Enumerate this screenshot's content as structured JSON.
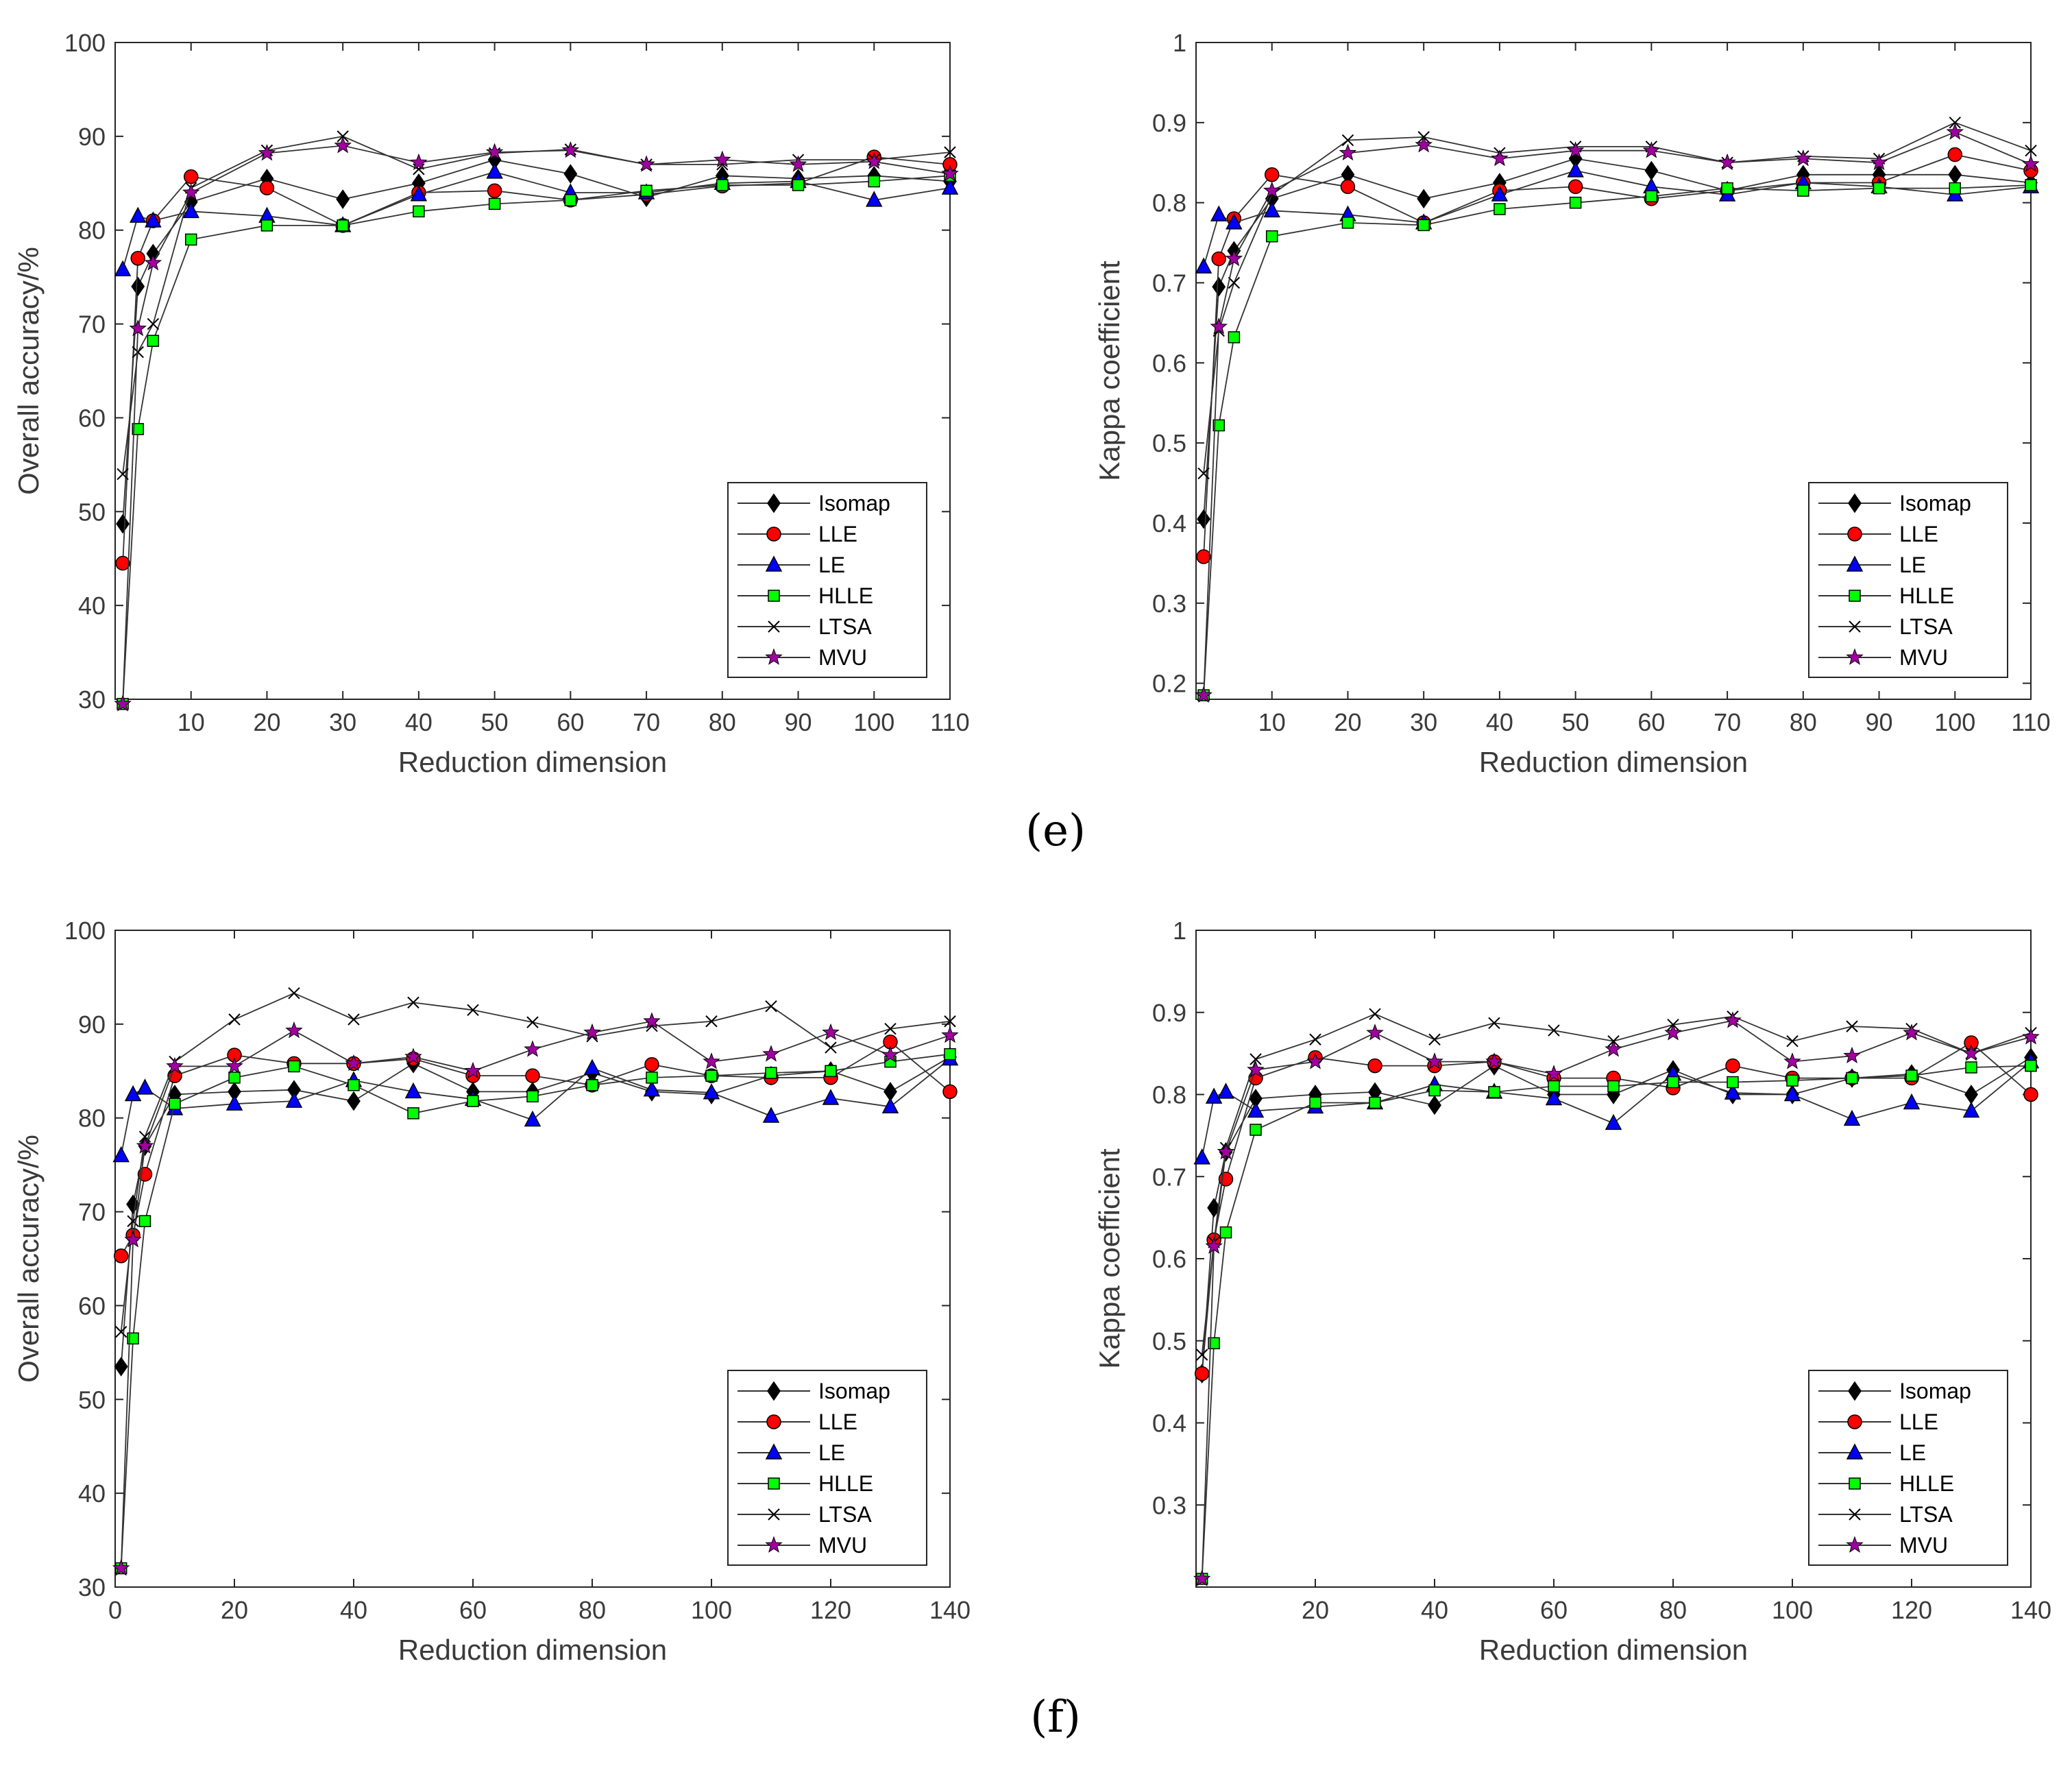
{
  "panels": [
    {
      "label": "(e)"
    },
    {
      "label": "(f)"
    }
  ],
  "colors": {
    "isomap": "#000000",
    "lle": "#ff0000",
    "le": "#0000ff",
    "hlle": "#00ff00",
    "ltsa": "#000000",
    "mvu": "#a000a0",
    "line": "#333333"
  },
  "chart_data": [
    {
      "id": "e-oa",
      "type": "line",
      "xlabel": "Reduction dimension",
      "ylabel": "Overall accuracy/%",
      "xlim": [
        0,
        110
      ],
      "ylim": [
        30,
        100
      ],
      "xticks": [
        10,
        20,
        30,
        40,
        50,
        60,
        70,
        80,
        90,
        100,
        110
      ],
      "yticks": [
        30,
        40,
        50,
        60,
        70,
        80,
        90,
        100
      ],
      "x": [
        1,
        3,
        5,
        10,
        20,
        30,
        40,
        50,
        60,
        70,
        80,
        90,
        100,
        110
      ],
      "legend": "bottom-right",
      "series": [
        {
          "name": "Isomap",
          "values": [
            48.7,
            74,
            77.5,
            83,
            85.5,
            83.3,
            85,
            87.5,
            86,
            83.5,
            85.8,
            85.5,
            85.8,
            85.2
          ]
        },
        {
          "name": "LLE",
          "values": [
            44.5,
            77,
            81,
            85.7,
            84.5,
            80.5,
            84,
            84.2,
            83.2,
            83.8,
            84.7,
            85,
            87.8,
            87
          ]
        },
        {
          "name": "LE",
          "values": [
            75.8,
            81.5,
            81,
            82,
            81.5,
            80.5,
            83.8,
            86.2,
            84,
            84,
            85,
            85.2,
            83.2,
            84.5
          ]
        },
        {
          "name": "HLLE",
          "values": [
            29.5,
            58.8,
            68.2,
            79,
            80.5,
            80.5,
            82,
            82.8,
            83.2,
            84.2,
            84.8,
            84.8,
            85.2,
            85.8
          ]
        },
        {
          "name": "LTSA",
          "values": [
            54,
            67,
            70,
            84.5,
            88.5,
            90,
            86.5,
            88.2,
            88.6,
            87,
            87,
            87.5,
            87.5,
            88.3
          ]
        },
        {
          "name": "MVU",
          "values": [
            29.5,
            69.5,
            76.5,
            84,
            88.2,
            89,
            87.2,
            88.3,
            88.5,
            87,
            87.5,
            87,
            87.3,
            86
          ]
        }
      ]
    },
    {
      "id": "e-kappa",
      "type": "line",
      "xlabel": "Reduction dimension",
      "ylabel": "Kappa coefficient",
      "xlim": [
        0,
        110
      ],
      "ylim": [
        0.18,
        1
      ],
      "xticks": [
        10,
        20,
        30,
        40,
        50,
        60,
        70,
        80,
        90,
        100,
        110
      ],
      "yticks": [
        0.2,
        0.3,
        0.4,
        0.5,
        0.6,
        0.7,
        0.8,
        0.9,
        1
      ],
      "ytick_labels": [
        "0.2",
        "0.3",
        "0.4",
        "0.5",
        "0.6",
        "0.7",
        "0.8",
        "0.9",
        "1"
      ],
      "x": [
        1,
        3,
        5,
        10,
        20,
        30,
        40,
        50,
        60,
        70,
        80,
        90,
        100,
        110
      ],
      "legend": "bottom-right",
      "series": [
        {
          "name": "Isomap",
          "values": [
            0.405,
            0.695,
            0.74,
            0.805,
            0.835,
            0.805,
            0.825,
            0.855,
            0.84,
            0.815,
            0.835,
            0.835,
            0.835,
            0.825
          ]
        },
        {
          "name": "LLE",
          "values": [
            0.358,
            0.73,
            0.78,
            0.835,
            0.82,
            0.775,
            0.815,
            0.82,
            0.805,
            0.815,
            0.825,
            0.825,
            0.86,
            0.84
          ]
        },
        {
          "name": "LE",
          "values": [
            0.72,
            0.785,
            0.775,
            0.79,
            0.785,
            0.775,
            0.81,
            0.84,
            0.82,
            0.81,
            0.825,
            0.82,
            0.81,
            0.82
          ]
        },
        {
          "name": "HLLE",
          "values": [
            0.185,
            0.522,
            0.632,
            0.758,
            0.775,
            0.772,
            0.792,
            0.8,
            0.808,
            0.818,
            0.815,
            0.818,
            0.818,
            0.822
          ]
        },
        {
          "name": "LTSA",
          "values": [
            0.462,
            0.64,
            0.7,
            0.81,
            0.878,
            0.882,
            0.862,
            0.87,
            0.87,
            0.85,
            0.858,
            0.855,
            0.9,
            0.865
          ]
        },
        {
          "name": "MVU",
          "values": [
            0.185,
            0.645,
            0.73,
            0.815,
            0.862,
            0.872,
            0.855,
            0.865,
            0.865,
            0.85,
            0.855,
            0.85,
            0.888,
            0.848
          ]
        }
      ]
    },
    {
      "id": "f-oa",
      "type": "line",
      "xlabel": "Reduction dimension",
      "ylabel": "Overall accuracy/%",
      "xlim": [
        0,
        140
      ],
      "ylim": [
        30,
        100
      ],
      "xticks": [
        0,
        20,
        40,
        60,
        80,
        100,
        120,
        140
      ],
      "yticks": [
        30,
        40,
        50,
        60,
        70,
        80,
        90,
        100
      ],
      "x": [
        1,
        3,
        5,
        10,
        20,
        30,
        40,
        50,
        60,
        70,
        80,
        90,
        100,
        110,
        120,
        130,
        140
      ],
      "legend": "bottom-right",
      "series": [
        {
          "name": "Isomap",
          "values": [
            53.5,
            70.8,
            77,
            82.5,
            82.8,
            83,
            81.8,
            85.8,
            82.8,
            82.8,
            84.8,
            82.8,
            82.5,
            84.5,
            85,
            82.8,
            86.5
          ]
        },
        {
          "name": "LLE",
          "values": [
            65.3,
            67.5,
            74,
            84.5,
            86.7,
            85.8,
            85.8,
            86.3,
            84.5,
            84.5,
            83.5,
            85.7,
            84.5,
            84.3,
            84.3,
            88.1,
            82.8
          ]
        },
        {
          "name": "LE",
          "values": [
            76,
            82.5,
            83.2,
            81,
            81.5,
            81.8,
            84,
            82.8,
            82,
            79.8,
            85.3,
            83,
            82.7,
            80.2,
            82.1,
            81.2,
            86.3
          ]
        },
        {
          "name": "HLLE",
          "values": [
            32,
            56.5,
            69,
            81.5,
            84.3,
            85.5,
            83.5,
            80.5,
            81.8,
            82.3,
            83.5,
            84.3,
            84.5,
            84.8,
            85,
            86,
            86.8
          ]
        },
        {
          "name": "LTSA",
          "values": [
            57.2,
            69,
            78,
            86,
            90.5,
            93.3,
            90.5,
            92.3,
            91.5,
            90.2,
            88.7,
            89.8,
            90.3,
            91.9,
            87.5,
            89.5,
            90.3
          ]
        },
        {
          "name": "MVU",
          "values": [
            32,
            67,
            77,
            85.5,
            85.5,
            89.3,
            85.8,
            86.5,
            85,
            87.3,
            89.1,
            90.3,
            86,
            86.8,
            89.1,
            86.7,
            88.8
          ]
        }
      ]
    },
    {
      "id": "f-kappa",
      "type": "line",
      "xlabel": "Reduction dimension",
      "ylabel": "Kappa coefficient",
      "xlim": [
        0,
        140
      ],
      "ylim": [
        0.2,
        1
      ],
      "xticks": [
        20,
        40,
        60,
        80,
        100,
        120,
        140
      ],
      "yticks": [
        0.3,
        0.4,
        0.5,
        0.6,
        0.7,
        0.8,
        0.9,
        1
      ],
      "ytick_labels": [
        "0.3",
        "0.4",
        "0.5",
        "0.6",
        "0.7",
        "0.8",
        "0.9",
        "1"
      ],
      "x": [
        1,
        3,
        5,
        10,
        20,
        30,
        40,
        50,
        60,
        70,
        80,
        90,
        100,
        110,
        120,
        130,
        140
      ],
      "legend": "bottom-right",
      "series": [
        {
          "name": "Isomap",
          "values": [
            0.46,
            0.662,
            0.73,
            0.795,
            0.8,
            0.803,
            0.787,
            0.835,
            0.8,
            0.8,
            0.83,
            0.8,
            0.8,
            0.82,
            0.825,
            0.8,
            0.845
          ]
        },
        {
          "name": "LLE",
          "values": [
            0.46,
            0.623,
            0.697,
            0.82,
            0.845,
            0.835,
            0.835,
            0.84,
            0.82,
            0.82,
            0.808,
            0.835,
            0.82,
            0.82,
            0.82,
            0.863,
            0.8
          ]
        },
        {
          "name": "LE",
          "values": [
            0.723,
            0.797,
            0.803,
            0.78,
            0.785,
            0.79,
            0.812,
            0.803,
            0.795,
            0.765,
            0.825,
            0.802,
            0.8,
            0.77,
            0.79,
            0.78,
            0.84
          ]
        },
        {
          "name": "HLLE",
          "values": [
            0.21,
            0.497,
            0.632,
            0.757,
            0.79,
            0.79,
            0.805,
            0.803,
            0.81,
            0.81,
            0.815,
            0.815,
            0.817,
            0.82,
            0.823,
            0.833,
            0.835
          ]
        },
        {
          "name": "LTSA",
          "values": [
            0.483,
            0.62,
            0.735,
            0.843,
            0.867,
            0.898,
            0.867,
            0.887,
            0.878,
            0.865,
            0.885,
            0.895,
            0.865,
            0.883,
            0.88,
            0.85,
            0.875
          ]
        },
        {
          "name": "MVU",
          "values": [
            0.21,
            0.615,
            0.73,
            0.83,
            0.84,
            0.875,
            0.84,
            0.84,
            0.825,
            0.855,
            0.875,
            0.89,
            0.84,
            0.847,
            0.875,
            0.85,
            0.87
          ]
        }
      ]
    }
  ]
}
